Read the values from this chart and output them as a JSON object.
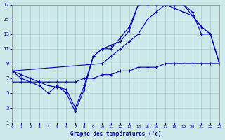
{
  "xlabel": "Graphe des températures (°c)",
  "xlim": [
    0,
    23
  ],
  "ylim": [
    1,
    17
  ],
  "yticks": [
    1,
    3,
    5,
    7,
    9,
    11,
    13,
    15,
    17
  ],
  "xticks": [
    0,
    1,
    2,
    3,
    4,
    5,
    6,
    7,
    8,
    9,
    10,
    11,
    12,
    13,
    14,
    15,
    16,
    17,
    18,
    19,
    20,
    21,
    22,
    23
  ],
  "bg": "#cce8e8",
  "grid_color": "#aacccc",
  "lc": "#0000bb",
  "c1x": [
    0,
    1,
    2,
    3,
    4,
    5,
    6,
    7,
    8,
    9,
    10,
    11,
    12,
    13,
    14,
    15,
    16,
    17,
    18,
    19,
    20,
    21,
    22,
    23
  ],
  "c1y": [
    8,
    7,
    6.5,
    6,
    5,
    6,
    5,
    2.5,
    5.5,
    10,
    11,
    11,
    12.5,
    14,
    17,
    17,
    17,
    17,
    17,
    17,
    16,
    13,
    13,
    9
  ],
  "c2x": [
    0,
    1,
    2,
    3,
    4,
    5,
    6,
    7,
    8,
    9,
    10,
    11,
    12,
    13,
    14,
    15,
    16,
    17,
    18,
    19,
    20,
    21,
    22,
    23
  ],
  "c2y": [
    8,
    7.5,
    7,
    6.5,
    6,
    5.8,
    5.5,
    3,
    6,
    10,
    11,
    11.5,
    12,
    13.5,
    17,
    17.5,
    17.5,
    17,
    17,
    17,
    15.5,
    14,
    13,
    9
  ],
  "c3x": [
    0,
    10,
    11,
    12,
    13,
    14,
    15,
    16,
    17,
    18,
    19,
    20,
    21,
    22,
    23
  ],
  "c3y": [
    8,
    9,
    10,
    11,
    12,
    13,
    15,
    16,
    17,
    16.5,
    16,
    15.5,
    14,
    13,
    9
  ],
  "c4x": [
    0,
    1,
    2,
    3,
    4,
    5,
    6,
    7,
    8,
    9,
    10,
    11,
    12,
    13,
    14,
    15,
    16,
    17,
    18,
    19,
    20,
    21,
    22,
    23
  ],
  "c4y": [
    6.5,
    6.5,
    6.5,
    6.5,
    6.5,
    6.5,
    6.5,
    6.5,
    7.0,
    7.0,
    7.5,
    7.5,
    8.0,
    8.0,
    8.5,
    8.5,
    8.5,
    9.0,
    9.0,
    9.0,
    9.0,
    9.0,
    9.0,
    9.0
  ]
}
